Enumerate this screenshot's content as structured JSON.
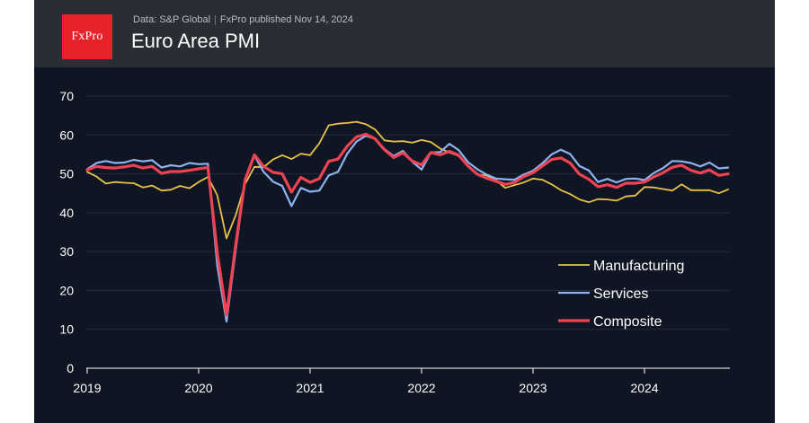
{
  "header": {
    "logo": "FxPro",
    "source": "Data: S&P Global",
    "separator": "|",
    "published": "FxPro published Nov 14, 2024",
    "title": "Euro Area PMI"
  },
  "colors": {
    "Manufacturing": "#e8c24a",
    "Services": "#8db3ef",
    "Composite": "#ee4352"
  },
  "chart_data": {
    "type": "line",
    "title": "Euro Area PMI",
    "xlabel": "",
    "ylabel": "",
    "ylim": [
      0,
      70
    ],
    "yticks": [
      0,
      10,
      20,
      30,
      40,
      50,
      60,
      70
    ],
    "xticks": [
      2019,
      2020,
      2021,
      2022,
      2023,
      2024
    ],
    "xlim": [
      2019.0,
      2024.75
    ],
    "grid": true,
    "legend_position": "right",
    "series": [
      {
        "name": "Manufacturing",
        "x": [
          2019.0,
          2019.083,
          2019.167,
          2019.25,
          2019.333,
          2019.417,
          2019.5,
          2019.583,
          2019.667,
          2019.75,
          2019.833,
          2019.917,
          2020.0,
          2020.083,
          2020.167,
          2020.25,
          2020.333,
          2020.417,
          2020.5,
          2020.583,
          2020.667,
          2020.75,
          2020.833,
          2020.917,
          2021.0,
          2021.083,
          2021.167,
          2021.25,
          2021.333,
          2021.417,
          2021.5,
          2021.583,
          2021.667,
          2021.75,
          2021.833,
          2021.917,
          2022.0,
          2022.083,
          2022.167,
          2022.25,
          2022.333,
          2022.417,
          2022.5,
          2022.583,
          2022.667,
          2022.75,
          2022.833,
          2022.917,
          2023.0,
          2023.083,
          2023.167,
          2023.25,
          2023.333,
          2023.417,
          2023.5,
          2023.583,
          2023.667,
          2023.75,
          2023.833,
          2023.917,
          2024.0,
          2024.083,
          2024.167,
          2024.25,
          2024.333,
          2024.417,
          2024.5,
          2024.583,
          2024.667,
          2024.75
        ],
        "values": [
          50.5,
          49.3,
          47.5,
          47.9,
          47.7,
          47.6,
          46.5,
          47.0,
          45.7,
          45.9,
          46.9,
          46.3,
          47.9,
          49.2,
          44.5,
          33.4,
          39.4,
          47.4,
          51.8,
          51.7,
          53.7,
          54.8,
          53.8,
          55.2,
          54.8,
          57.9,
          62.5,
          62.9,
          63.1,
          63.4,
          62.8,
          61.4,
          58.6,
          58.3,
          58.4,
          58.0,
          58.7,
          58.2,
          56.5,
          55.5,
          54.6,
          52.1,
          49.8,
          49.6,
          48.4,
          46.4,
          47.1,
          47.8,
          48.8,
          48.5,
          47.3,
          45.8,
          44.8,
          43.4,
          42.7,
          43.5,
          43.4,
          43.1,
          44.2,
          44.4,
          46.6,
          46.5,
          46.1,
          45.7,
          47.3,
          45.8,
          45.8,
          45.8,
          45.0,
          46.0
        ]
      },
      {
        "name": "Services",
        "x": [
          2019.0,
          2019.083,
          2019.167,
          2019.25,
          2019.333,
          2019.417,
          2019.5,
          2019.583,
          2019.667,
          2019.75,
          2019.833,
          2019.917,
          2020.0,
          2020.083,
          2020.167,
          2020.25,
          2020.333,
          2020.417,
          2020.5,
          2020.583,
          2020.667,
          2020.75,
          2020.833,
          2020.917,
          2021.0,
          2021.083,
          2021.167,
          2021.25,
          2021.333,
          2021.417,
          2021.5,
          2021.583,
          2021.667,
          2021.75,
          2021.833,
          2021.917,
          2022.0,
          2022.083,
          2022.167,
          2022.25,
          2022.333,
          2022.417,
          2022.5,
          2022.583,
          2022.667,
          2022.75,
          2022.833,
          2022.917,
          2023.0,
          2023.083,
          2023.167,
          2023.25,
          2023.333,
          2023.417,
          2023.5,
          2023.583,
          2023.667,
          2023.75,
          2023.833,
          2023.917,
          2024.0,
          2024.083,
          2024.167,
          2024.25,
          2024.333,
          2024.417,
          2024.5,
          2024.583,
          2024.667,
          2024.75
        ],
        "values": [
          51.2,
          52.8,
          53.3,
          52.8,
          52.9,
          53.6,
          53.2,
          53.5,
          51.6,
          52.2,
          51.9,
          52.8,
          52.5,
          52.6,
          26.4,
          12.0,
          30.5,
          48.3,
          54.7,
          50.5,
          48.0,
          46.9,
          41.7,
          46.4,
          45.4,
          45.7,
          49.6,
          50.5,
          55.2,
          58.3,
          59.8,
          59.0,
          56.4,
          54.6,
          55.9,
          53.1,
          51.1,
          55.5,
          55.6,
          57.7,
          56.1,
          53.0,
          51.2,
          49.8,
          48.8,
          48.6,
          48.5,
          49.8,
          50.8,
          52.7,
          55.0,
          56.2,
          55.1,
          52.0,
          50.9,
          47.9,
          48.7,
          47.8,
          48.7,
          48.8,
          48.4,
          50.2,
          51.5,
          53.3,
          53.2,
          52.8,
          51.9,
          52.9,
          51.4,
          51.6
        ]
      },
      {
        "name": "Composite",
        "x": [
          2019.0,
          2019.083,
          2019.167,
          2019.25,
          2019.333,
          2019.417,
          2019.5,
          2019.583,
          2019.667,
          2019.75,
          2019.833,
          2019.917,
          2020.0,
          2020.083,
          2020.167,
          2020.25,
          2020.333,
          2020.417,
          2020.5,
          2020.583,
          2020.667,
          2020.75,
          2020.833,
          2020.917,
          2021.0,
          2021.083,
          2021.167,
          2021.25,
          2021.333,
          2021.417,
          2021.5,
          2021.583,
          2021.667,
          2021.75,
          2021.833,
          2021.917,
          2022.0,
          2022.083,
          2022.167,
          2022.25,
          2022.333,
          2022.417,
          2022.5,
          2022.583,
          2022.667,
          2022.75,
          2022.833,
          2022.917,
          2023.0,
          2023.083,
          2023.167,
          2023.25,
          2023.333,
          2023.417,
          2023.5,
          2023.583,
          2023.667,
          2023.75,
          2023.833,
          2023.917,
          2024.0,
          2024.083,
          2024.167,
          2024.25,
          2024.333,
          2024.417,
          2024.5,
          2024.583,
          2024.667,
          2024.75
        ],
        "values": [
          51.0,
          51.9,
          51.6,
          51.5,
          51.8,
          52.2,
          51.5,
          51.9,
          50.1,
          50.6,
          50.6,
          50.9,
          51.3,
          51.6,
          29.7,
          13.6,
          31.9,
          48.5,
          54.9,
          51.9,
          50.4,
          50.0,
          45.3,
          49.1,
          47.8,
          48.8,
          53.2,
          53.8,
          57.1,
          59.5,
          60.2,
          59.0,
          56.2,
          54.2,
          55.4,
          53.3,
          52.3,
          55.5,
          54.9,
          55.8,
          54.8,
          52.0,
          49.9,
          48.9,
          48.1,
          47.3,
          47.8,
          49.3,
          50.3,
          52.0,
          53.7,
          54.1,
          52.8,
          49.9,
          48.6,
          46.7,
          47.2,
          46.5,
          47.6,
          47.6,
          47.9,
          49.2,
          50.3,
          51.7,
          52.2,
          50.9,
          50.2,
          51.0,
          49.6,
          50.0
        ]
      }
    ]
  }
}
